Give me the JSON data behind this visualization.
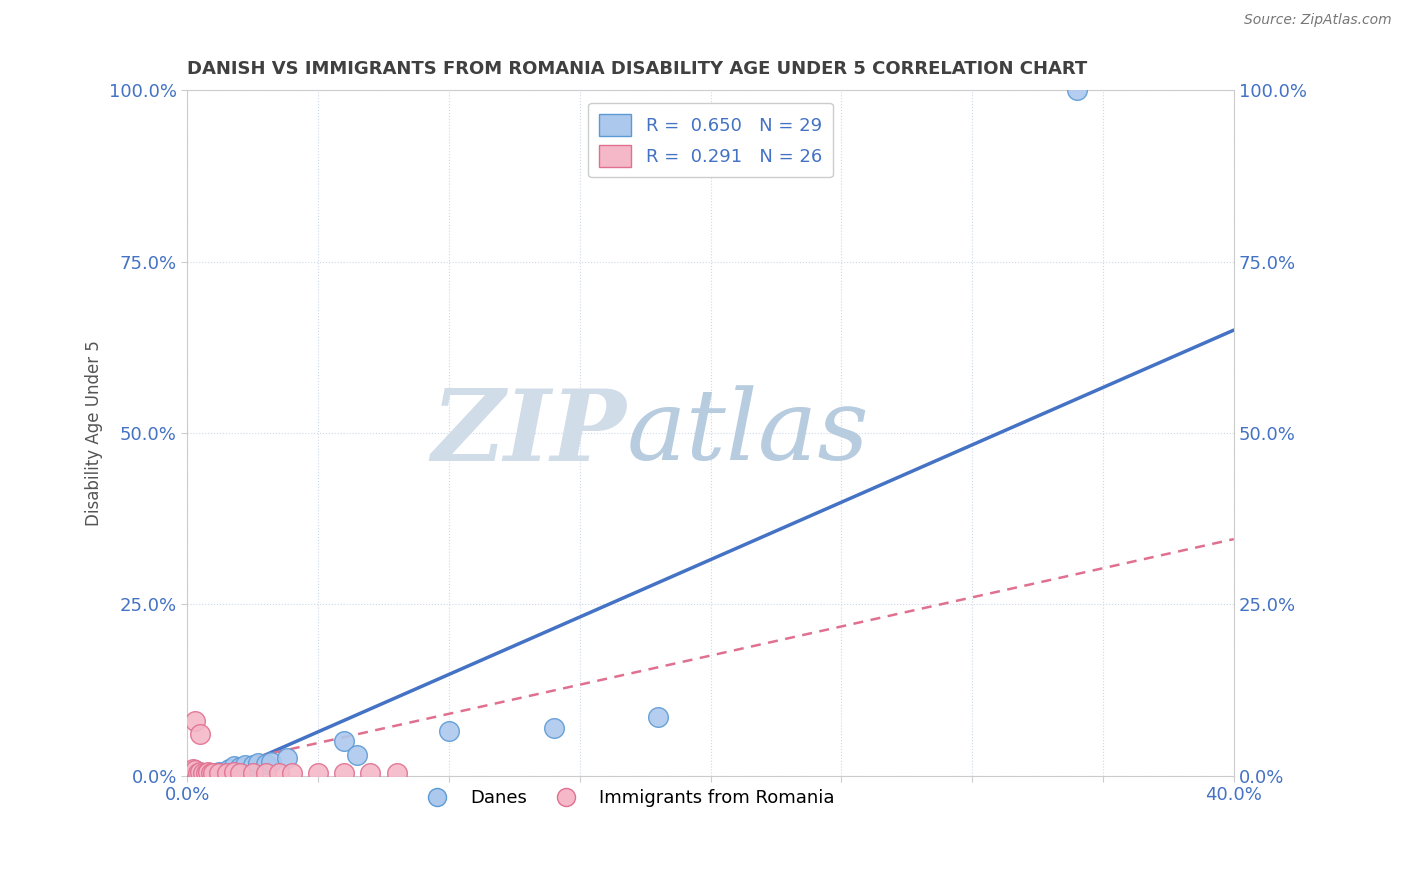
{
  "title": "DANISH VS IMMIGRANTS FROM ROMANIA DISABILITY AGE UNDER 5 CORRELATION CHART",
  "source": "Source: ZipAtlas.com",
  "ylabel": "Disability Age Under 5",
  "xlim": [
    0.0,
    0.4
  ],
  "ylim": [
    0.0,
    1.0
  ],
  "ytick_labels": [
    "0.0%",
    "25.0%",
    "50.0%",
    "75.0%",
    "100.0%"
  ],
  "ytick_positions": [
    0.0,
    0.25,
    0.5,
    0.75,
    1.0
  ],
  "danes_x": [
    0.001,
    0.002,
    0.002,
    0.003,
    0.004,
    0.005,
    0.006,
    0.007,
    0.008,
    0.009,
    0.01,
    0.012,
    0.013,
    0.015,
    0.016,
    0.018,
    0.02,
    0.022,
    0.025,
    0.027,
    0.03,
    0.032,
    0.038,
    0.06,
    0.065,
    0.1,
    0.14,
    0.18,
    0.34
  ],
  "danes_y": [
    0.003,
    0.005,
    0.003,
    0.004,
    0.003,
    0.004,
    0.003,
    0.003,
    0.004,
    0.003,
    0.003,
    0.005,
    0.004,
    0.005,
    0.01,
    0.014,
    0.012,
    0.015,
    0.015,
    0.018,
    0.017,
    0.02,
    0.025,
    0.05,
    0.03,
    0.065,
    0.07,
    0.085,
    1.0
  ],
  "romania_x": [
    0.001,
    0.001,
    0.002,
    0.002,
    0.003,
    0.003,
    0.004,
    0.005,
    0.005,
    0.006,
    0.007,
    0.008,
    0.009,
    0.01,
    0.012,
    0.015,
    0.018,
    0.02,
    0.025,
    0.03,
    0.035,
    0.04,
    0.05,
    0.06,
    0.07,
    0.08
  ],
  "romania_y": [
    0.003,
    0.005,
    0.004,
    0.01,
    0.008,
    0.08,
    0.004,
    0.005,
    0.06,
    0.004,
    0.004,
    0.005,
    0.004,
    0.004,
    0.004,
    0.004,
    0.005,
    0.004,
    0.004,
    0.004,
    0.004,
    0.004,
    0.004,
    0.004,
    0.004,
    0.004
  ],
  "danes_line_x0": 0.0,
  "danes_line_y0": -0.02,
  "danes_line_x1": 0.4,
  "danes_line_y1": 0.65,
  "romania_line_x0": 0.0,
  "romania_line_y0": 0.005,
  "romania_line_x1": 0.4,
  "romania_line_y1": 0.345,
  "danes_R": 0.65,
  "danes_N": 29,
  "romania_R": 0.291,
  "romania_N": 26,
  "danes_color": "#adc8ed",
  "danes_edge_color": "#5b9bd5",
  "romania_color": "#f4b8c8",
  "romania_edge_color": "#e07090",
  "danes_line_color": "#4472c4",
  "romania_line_color": "#e07090",
  "background_color": "#ffffff",
  "grid_color": "#c8d4e8",
  "title_color": "#404040",
  "axis_label_color": "#555555",
  "tick_label_color": "#4472c4",
  "legend_label_danes": "Danes",
  "legend_label_romania": "Immigrants from Romania",
  "watermark_zip": "ZIP",
  "watermark_atlas": "atlas",
  "watermark_color_zip": "#d0dce8",
  "watermark_color_atlas": "#b8cce0"
}
